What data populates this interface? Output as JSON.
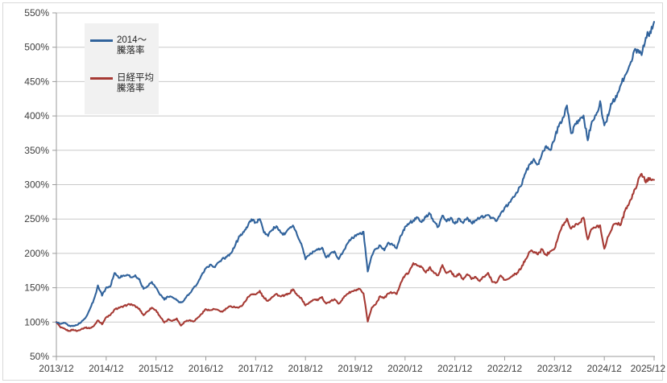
{
  "chart_data": {
    "type": "line",
    "title": "",
    "grid": true,
    "legend_position": "top-left",
    "ylim": [
      50,
      550
    ],
    "y_tick_step": 50,
    "y_tick_labels": [
      "550%",
      "500%",
      "450%",
      "400%",
      "350%",
      "300%",
      "250%",
      "200%",
      "150%",
      "100%",
      "50%"
    ],
    "x_tick_labels": [
      "2013/12",
      "2014/12",
      "2015/12",
      "2016/12",
      "2017/12",
      "2018/12",
      "2019/12",
      "2020/12",
      "2021/12",
      "2022/12",
      "2023/12",
      "2024/12",
      "2025/12"
    ],
    "x_monthly_start": "2013/12",
    "x_monthly_end": "2025/12",
    "series": [
      {
        "name": "2014〜騰落率",
        "legend_label_lines": [
          "2014〜",
          "騰落率"
        ],
        "color": "#31639C",
        "values_pct_monthly": [
          100,
          97,
          99,
          95,
          94,
          96,
          100,
          106,
          118,
          132,
          153,
          139,
          150,
          152,
          172,
          165,
          167,
          169,
          165,
          168,
          162,
          148,
          153,
          158,
          150,
          140,
          133,
          137,
          136,
          132,
          128,
          134,
          141,
          149,
          156,
          168,
          178,
          183,
          180,
          186,
          192,
          194,
          200,
          211,
          224,
          231,
          238,
          250,
          245,
          249,
          231,
          226,
          235,
          239,
          231,
          227,
          236,
          241,
          227,
          214,
          192,
          198,
          203,
          206,
          208,
          194,
          199,
          203,
          192,
          201,
          213,
          221,
          226,
          228,
          231,
          174,
          197,
          207,
          212,
          205,
          215,
          213,
          207,
          226,
          238,
          244,
          248,
          252,
          246,
          253,
          258,
          246,
          238,
          256,
          247,
          252,
          243,
          251,
          245,
          252,
          244,
          248,
          251,
          254,
          257,
          251,
          247,
          258,
          266,
          273,
          281,
          289,
          299,
          316,
          331,
          336,
          329,
          346,
          355,
          349,
          366,
          386,
          396,
          414,
          374,
          387,
          393,
          399,
          366,
          391,
          400,
          421,
          386,
          402,
          422,
          429,
          446,
          458,
          471,
          491,
          496,
          489,
          515,
          521,
          537
        ]
      },
      {
        "name": "日経平均騰落率",
        "legend_label_lines": [
          "日経平均",
          "騰落率"
        ],
        "color": "#A63A34",
        "values_pct_monthly": [
          100,
          92,
          90,
          87,
          89,
          87,
          90,
          92,
          91,
          94,
          103,
          97,
          107,
          110,
          118,
          121,
          122,
          125,
          126,
          123,
          119,
          110,
          116,
          121,
          117,
          108,
          99,
          104,
          102,
          105,
          95,
          101,
          103,
          101,
          106,
          112,
          119,
          117,
          119,
          117,
          115,
          120,
          123,
          122,
          121,
          126,
          135,
          141,
          140,
          145,
          135,
          131,
          137,
          141,
          137,
          139,
          141,
          148,
          139,
          135,
          124,
          129,
          133,
          132,
          136,
          127,
          130,
          133,
          127,
          134,
          141,
          144,
          146,
          148,
          141,
          101,
          121,
          127,
          138,
          135,
          142,
          143,
          141,
          158,
          168,
          173,
          186,
          182,
          180,
          172,
          180,
          171,
          168,
          183,
          171,
          174,
          166,
          170,
          162,
          170,
          163,
          166,
          160,
          166,
          171,
          159,
          157,
          168,
          161,
          163,
          168,
          171,
          179,
          191,
          203,
          202,
          199,
          206,
          197,
          204,
          207,
          226,
          241,
          250,
          236,
          242,
          244,
          253,
          220,
          236,
          238,
          241,
          206,
          226,
          239,
          244,
          242,
          263,
          273,
          287,
          303,
          316,
          304,
          310,
          307
        ]
      }
    ]
  },
  "colors": {
    "plot_background": "#FFFFFF",
    "outer_border": "#D9D9D9",
    "gridline": "#C9C9C9",
    "axis_line": "#9B9B9B",
    "tick_label": "#404040",
    "legend_background": "#F1F1F1"
  }
}
